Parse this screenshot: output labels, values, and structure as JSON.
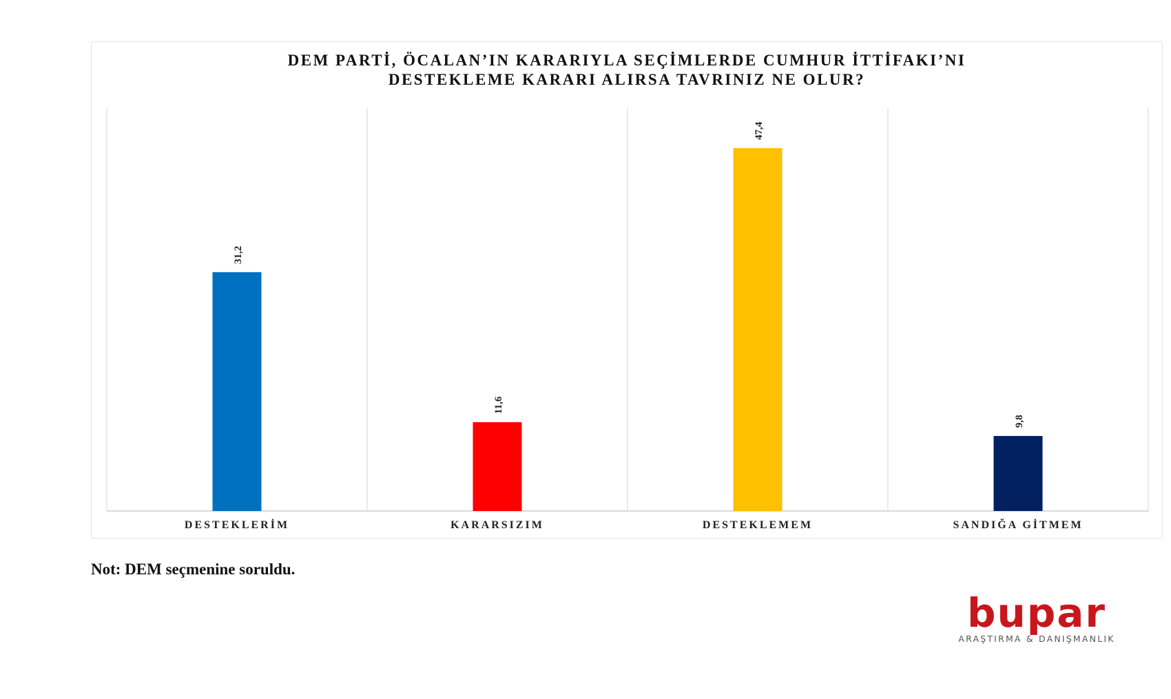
{
  "chart_data": {
    "type": "bar",
    "title_lines": [
      "DEM PARTİ, ÖCALAN’IN KARARIYLA SEÇİMLERDE CUMHUR İTTİFAKI’NI",
      "DESTEKLEME KARARI ALIRSA TAVRINIZ NE OLUR?"
    ],
    "categories": [
      "DESTEKLERİM",
      "KARARSIZIM",
      "DESTEKLEMEM",
      "SANDIĞA GİTMEM"
    ],
    "values": [
      31.2,
      11.6,
      47.4,
      9.8
    ],
    "value_labels": [
      "31,2",
      "11,6",
      "47,4",
      "9,8"
    ],
    "colors": [
      "#0070c0",
      "#ff0000",
      "#ffc000",
      "#002060"
    ],
    "ylim": [
      0,
      50
    ],
    "grid": "vertical category separators",
    "legend": "none",
    "xlabel": "",
    "ylabel": ""
  },
  "note": "Not: DEM seçmenine soruldu.",
  "logo": {
    "name": "bupar",
    "tagline": "ARAŞTIRMA & DANIŞMANLIK",
    "color": "#c8161d"
  }
}
